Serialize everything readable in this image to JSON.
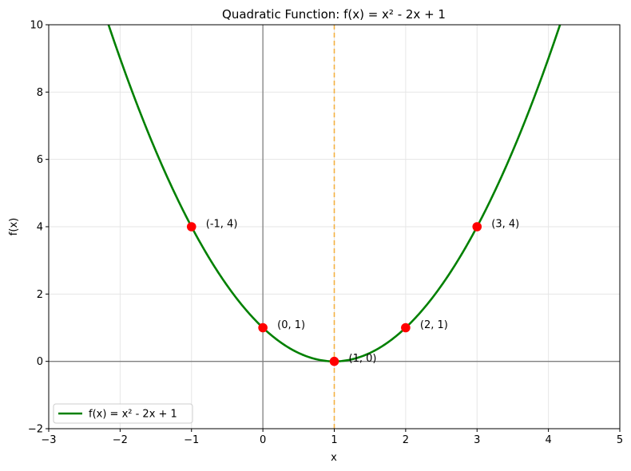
{
  "chart_data": {
    "type": "line",
    "title": "Quadratic Function: f(x) = x² - 2x + 1",
    "xlabel": "x",
    "ylabel": "f(x)",
    "xlim": [
      -3,
      5
    ],
    "ylim": [
      -2,
      10
    ],
    "grid": true,
    "x_ticks": [
      -3,
      -2,
      -1,
      0,
      1,
      2,
      3,
      4,
      5
    ],
    "x_tick_labels": [
      "−3",
      "−2",
      "−1",
      "0",
      "1",
      "2",
      "3",
      "4",
      "5"
    ],
    "y_ticks": [
      -2,
      0,
      2,
      4,
      6,
      8,
      10
    ],
    "y_tick_labels": [
      "−2",
      "0",
      "2",
      "4",
      "6",
      "8",
      "10"
    ],
    "series": [
      {
        "name": "f(x) = x² - 2x + 1",
        "color": "#008000",
        "coefficients": {
          "a": 1,
          "b": -2,
          "c": 1
        },
        "x_range": [
          -3,
          5
        ]
      }
    ],
    "axis_of_symmetry": {
      "x": 1,
      "color": "#f5a623",
      "style": "dashed"
    },
    "highlighted_points": [
      {
        "x": -1,
        "y": 4,
        "label": "(-1, 4)"
      },
      {
        "x": 0,
        "y": 1,
        "label": "(0, 1)"
      },
      {
        "x": 1,
        "y": 0,
        "label": "(1, 0)"
      },
      {
        "x": 2,
        "y": 1,
        "label": "(2, 1)"
      },
      {
        "x": 3,
        "y": 4,
        "label": "(3, 4)"
      }
    ],
    "point_color": "#ff0000",
    "legend": {
      "position": "lower-left",
      "entries": [
        "f(x) = x² - 2x + 1"
      ]
    }
  }
}
